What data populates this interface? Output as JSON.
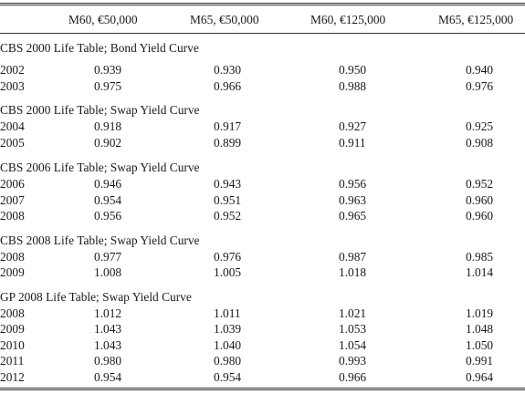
{
  "columns": [
    "M60, €50,000",
    "M65, €50,000",
    "M60, €125,000",
    "M65, €125,000"
  ],
  "sections": [
    {
      "title": "CBS 2000 Life Table; Bond Yield Curve",
      "rows": [
        [
          "2002",
          "0.939",
          "0.930",
          "0.950",
          "0.940"
        ],
        [
          "2003",
          "0.975",
          "0.966",
          "0.988",
          "0.976"
        ]
      ]
    },
    {
      "title": "CBS 2000 Life Table; Swap Yield Curve",
      "rows": [
        [
          "2004",
          "0.918",
          "0.917",
          "0.927",
          "0.925"
        ],
        [
          "2005",
          "0.902",
          "0.899",
          "0.911",
          "0.908"
        ]
      ]
    },
    {
      "title": "CBS 2006 Life Table; Swap Yield Curve",
      "rows": [
        [
          "2006",
          "0.946",
          "0.943",
          "0.956",
          "0.952"
        ],
        [
          "2007",
          "0.954",
          "0.951",
          "0.963",
          "0.960"
        ],
        [
          "2008",
          "0.956",
          "0.952",
          "0.965",
          "0.960"
        ]
      ]
    },
    {
      "title": "CBS 2008 Life Table; Swap Yield Curve",
      "rows": [
        [
          "2008",
          "0.977",
          "0.976",
          "0.987",
          "0.985"
        ],
        [
          "2009",
          "1.008",
          "1.005",
          "1.018",
          "1.014"
        ]
      ]
    },
    {
      "title": "GP 2008 Life Table; Swap Yield Curve",
      "rows": [
        [
          "2008",
          "1.012",
          "1.011",
          "1.021",
          "1.019"
        ],
        [
          "2009",
          "1.043",
          "1.039",
          "1.053",
          "1.048"
        ],
        [
          "2010",
          "1.043",
          "1.040",
          "1.054",
          "1.050"
        ],
        [
          "2011",
          "0.980",
          "0.980",
          "0.993",
          "0.991"
        ],
        [
          "2012",
          "0.954",
          "0.954",
          "0.966",
          "0.964"
        ]
      ]
    }
  ]
}
